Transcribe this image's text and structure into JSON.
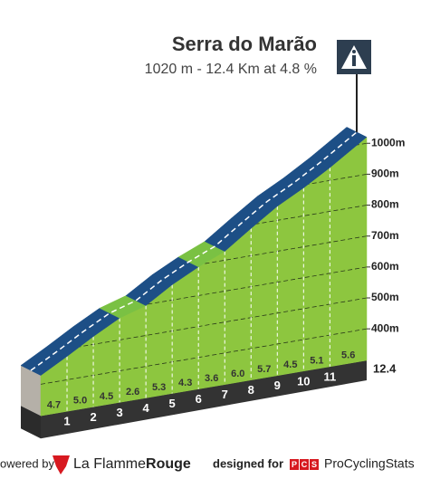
{
  "chart_data": {
    "type": "climb-profile",
    "title": "Serra do Marão",
    "subtitle": "1020 m - 12.4 Km at 4.8 %",
    "summit": 1020,
    "xlim": [
      0,
      12.4
    ],
    "xticks": [
      1,
      2,
      3,
      4,
      5,
      6,
      7,
      8,
      9,
      10,
      11
    ],
    "gradients": [
      4.7,
      5.0,
      4.5,
      2.6,
      5.3,
      4.3,
      3.6,
      6.0,
      5.7,
      4.5,
      5.1,
      5.6
    ],
    "value_labels": [
      "4.7",
      "5.0",
      "4.5",
      "2.6",
      "5.3",
      "4.3",
      "3.6",
      "6.0",
      "5.7",
      "4.5",
      "5.1",
      "5.6"
    ],
    "road_colors": [
      "#1d4f86",
      "#1d4f86",
      "#1d4f86",
      "#7ac143",
      "#1d4f86",
      "#1d4f86",
      "#7ac143",
      "#1d4f86",
      "#1d4f86",
      "#1d4f86",
      "#1d4f86",
      "#1d4f86"
    ],
    "face_color": "#8dc63f",
    "ylim": [
      298,
      1030
    ],
    "yticks": [
      {
        "value": 400,
        "label": "400m"
      },
      {
        "value": 500,
        "label": "500m"
      },
      {
        "value": 600,
        "label": "600m"
      },
      {
        "value": 700,
        "label": "700m"
      },
      {
        "value": 800,
        "label": "800m"
      },
      {
        "value": 900,
        "label": "900m"
      },
      {
        "value": 1000,
        "label": "1000m"
      }
    ],
    "grid": true
  },
  "footer": {
    "powered": "owered by",
    "brand_a": "La Flamme",
    "brand_b": "Rouge",
    "designed": "designed for",
    "pcs": [
      "P",
      "C",
      "S"
    ],
    "site": "ProCyclingStats"
  }
}
